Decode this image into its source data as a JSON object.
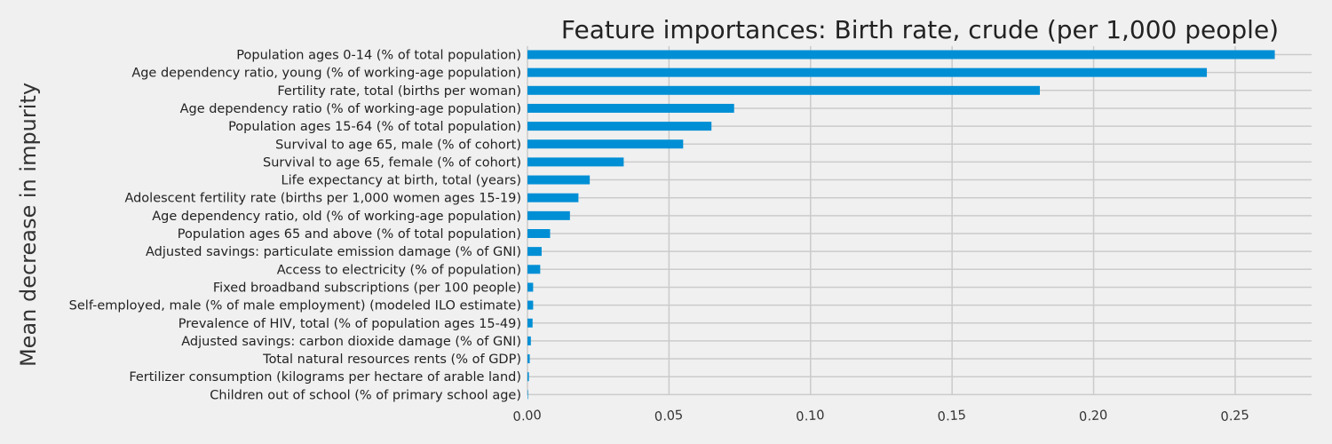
{
  "chart_data": {
    "type": "bar",
    "orientation": "horizontal",
    "title": "Feature importances: Birth rate, crude (per 1,000 people)",
    "xlabel": "",
    "ylabel": "Mean decrease in impurity",
    "xlim": [
      0,
      0.277
    ],
    "xticks": [
      0.0,
      0.05,
      0.1,
      0.15,
      0.2,
      0.25
    ],
    "xtick_labels": [
      "0.00",
      "0.05",
      "0.10",
      "0.15",
      "0.20",
      "0.25"
    ],
    "grid": true,
    "bar_color": "#008fd5",
    "categories": [
      "Population ages 0-14 (% of total population)",
      "Age dependency ratio, young (% of working-age population)",
      "Fertility rate, total (births per woman)",
      "Age dependency ratio (% of working-age population)",
      "Population ages 15-64 (% of total population)",
      "Survival to age 65, male (% of cohort)",
      "Survival to age 65, female (% of cohort)",
      "Life expectancy at birth, total (years)",
      "Adolescent fertility rate (births per 1,000 women ages 15-19)",
      "Age dependency ratio, old (% of working-age population)",
      "Population ages 65 and above (% of total population)",
      "Adjusted savings: particulate emission damage (% of GNI)",
      "Access to electricity (% of population)",
      "Fixed broadband subscriptions (per 100 people)",
      "Self-employed, male (% of male employment) (modeled ILO estimate)",
      "Prevalence of HIV, total (% of population ages 15-49)",
      "Adjusted savings: carbon dioxide damage (% of GNI)",
      "Total natural resources rents (% of GDP)",
      "Fertilizer consumption (kilograms per hectare of arable land)",
      "Children out of school (% of primary school age)"
    ],
    "values": [
      0.264,
      0.24,
      0.181,
      0.073,
      0.065,
      0.055,
      0.034,
      0.022,
      0.018,
      0.015,
      0.008,
      0.005,
      0.0045,
      0.002,
      0.002,
      0.0018,
      0.0012,
      0.0008,
      0.0005,
      0.0002
    ]
  }
}
